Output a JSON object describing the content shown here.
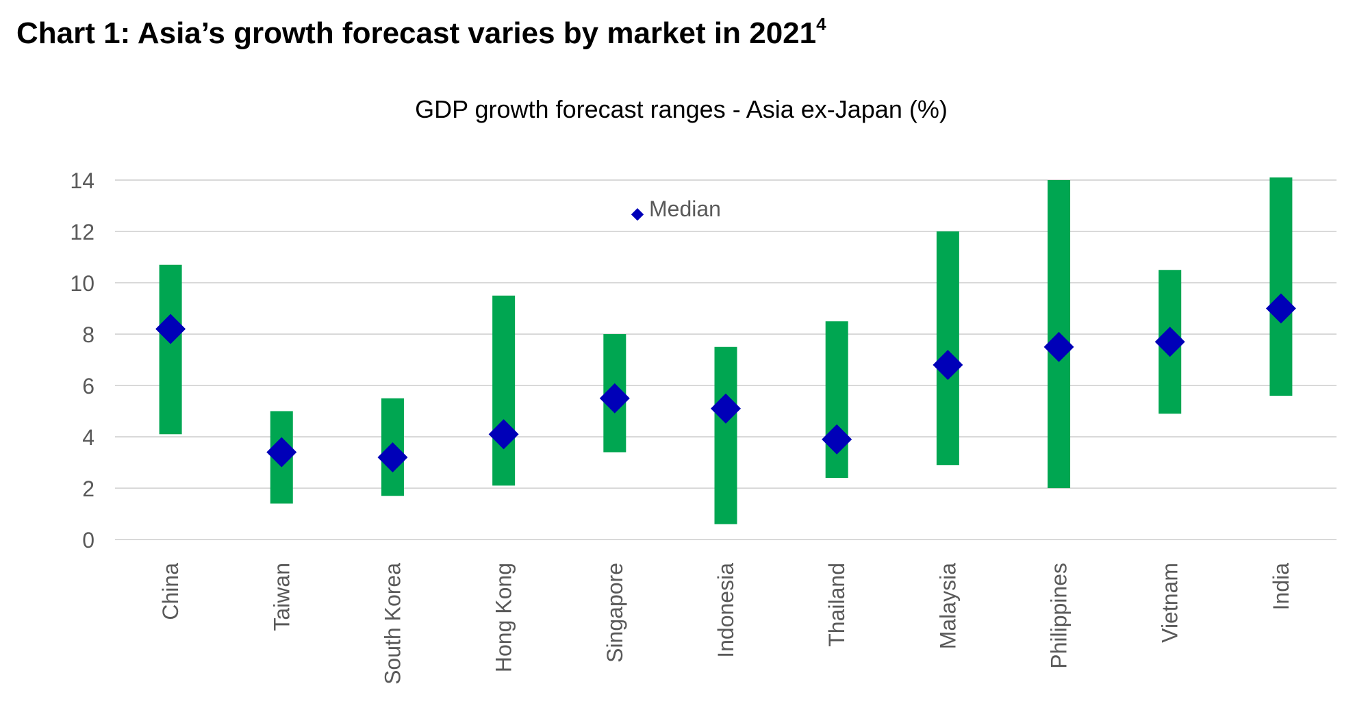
{
  "page": {
    "title": "Chart 1: Asia’s growth forecast varies by market in 2021",
    "title_superscript": "4"
  },
  "chart_data": {
    "type": "range",
    "title": "GDP growth forecast ranges - Asia ex-Japan (%)",
    "xlabel": "",
    "ylabel": "",
    "ylim": [
      0,
      14
    ],
    "yticks": [
      0,
      2,
      4,
      6,
      8,
      10,
      12,
      14
    ],
    "grid": true,
    "legend": {
      "position": "top-center",
      "entries": [
        "Median"
      ]
    },
    "colors": {
      "range": "#00a651",
      "median": "#0000b8",
      "grid": "#d9d9d9",
      "axis_text": "#595959"
    },
    "categories": [
      "China",
      "Taiwan",
      "South Korea",
      "Hong Kong",
      "Singapore",
      "Indonesia",
      "Thailand",
      "Malaysia",
      "Philippines",
      "Vietnam",
      "India"
    ],
    "low": [
      4.1,
      1.4,
      1.7,
      2.1,
      3.4,
      0.6,
      2.4,
      2.9,
      2.0,
      4.9,
      5.6
    ],
    "high": [
      10.7,
      5.0,
      5.5,
      9.5,
      8.0,
      7.5,
      8.5,
      12.0,
      14.0,
      10.5,
      14.1
    ],
    "series": [
      {
        "name": "Median",
        "values": [
          8.2,
          3.4,
          3.2,
          4.1,
          5.5,
          5.1,
          3.9,
          6.8,
          7.5,
          7.7,
          9.0
        ]
      }
    ]
  }
}
